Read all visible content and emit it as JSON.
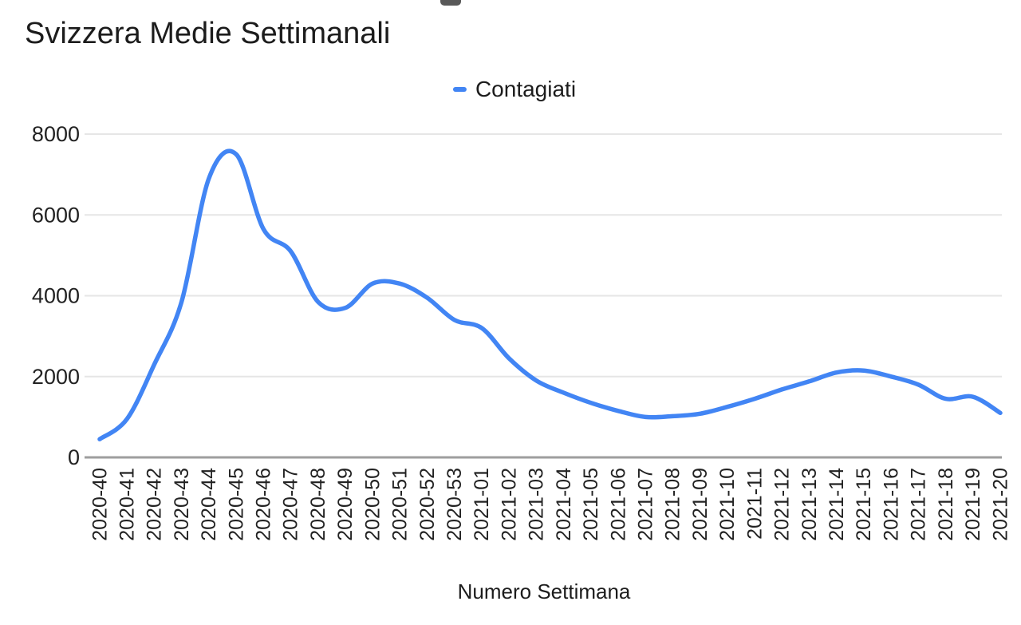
{
  "chart_data": {
    "type": "line",
    "title": "Svizzera Medie Settimanali",
    "xlabel": "Numero Settimana",
    "ylabel": "",
    "legend": {
      "position": "top-center",
      "entries": [
        {
          "label": "Contagiati",
          "color": "#4285f4"
        }
      ]
    },
    "categories": [
      "2020-40",
      "2020-41",
      "2020-42",
      "2020-43",
      "2020-44",
      "2020-45",
      "2020-46",
      "2020-47",
      "2020-48",
      "2020-49",
      "2020-50",
      "2020-51",
      "2020-52",
      "2020-53",
      "2021-01",
      "2021-02",
      "2021-03",
      "2021-04",
      "2021-05",
      "2021-06",
      "2021-07",
      "2021-08",
      "2021-09",
      "2021-10",
      "2021-11",
      "2021-12",
      "2021-13",
      "2021-14",
      "2021-15",
      "2021-16",
      "2021-17",
      "2021-18",
      "2021-19",
      "2021-20"
    ],
    "series": [
      {
        "name": "Contagiati",
        "values": [
          450,
          950,
          2300,
          3850,
          6900,
          7500,
          5650,
          5100,
          3850,
          3700,
          4300,
          4300,
          3950,
          3400,
          3200,
          2450,
          1900,
          1600,
          1350,
          1150,
          1000,
          1020,
          1080,
          1250,
          1450,
          1680,
          1880,
          2100,
          2150,
          2000,
          1800,
          1450,
          1500,
          1100
        ]
      }
    ],
    "y_ticks": [
      0,
      2000,
      4000,
      6000,
      8000
    ],
    "ylim": [
      0,
      8000
    ],
    "grid": "horizontal",
    "line_style": "smooth",
    "colors": {
      "line": "#4285f4",
      "gridline": "#e6e6e6",
      "baseline": "#9e9e9e",
      "text": "#1c1c1c"
    }
  }
}
